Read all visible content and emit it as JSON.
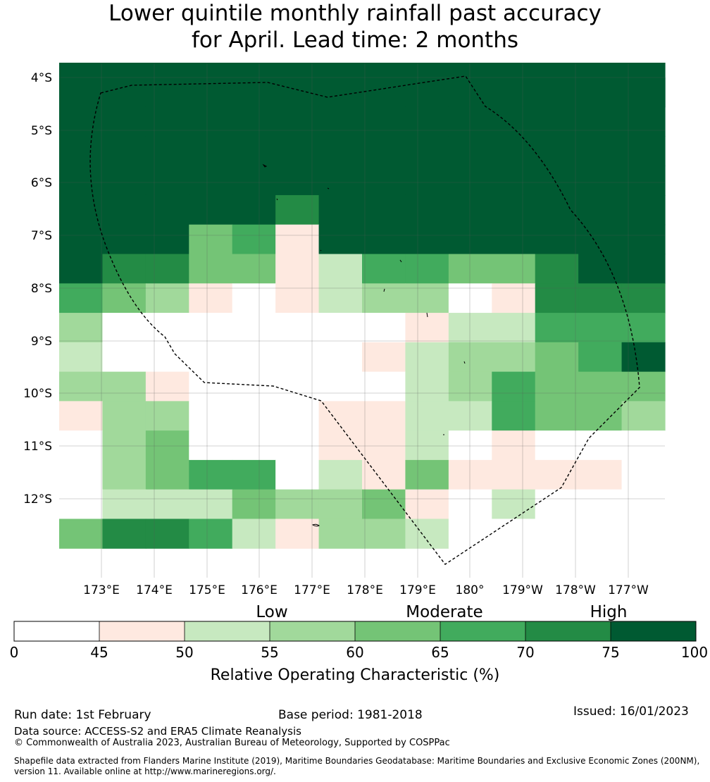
{
  "title": {
    "line1": "Lower quintile monthly rainfall past accuracy",
    "line2": "for April. Lead time: 2 months"
  },
  "map": {
    "lat_labels": [
      "4°S",
      "5°S",
      "6°S",
      "7°S",
      "8°S",
      "9°S",
      "10°S",
      "11°S",
      "12°S"
    ],
    "lon_labels": [
      "173°E",
      "174°E",
      "175°E",
      "176°E",
      "177°E",
      "178°E",
      "179°E",
      "180°",
      "179°W",
      "178°W",
      "177°W"
    ],
    "grid_legend_codes": "0=<45,1=45-50,2=50-55,3=55-60,4=60-65,5=65-70,6=70-75,7=>=75",
    "grid_rows": [
      "77777777777777",
      "77777777777777",
      "77777777777777",
      "77777777777777",
      "77777777777777",
      "77777677777777",
      "77745177777777",
      "76644125544677",
      "54310123301666",
      "30000000122555",
      "20000001233457",
      "33100000235444",
      "13300011225443",
      "03400011201000",
      "03455021411110",
      "02224334102000",
      "46652133200000"
    ]
  },
  "legend": {
    "category_labels": [
      "Low",
      "Moderate",
      "High"
    ],
    "colors": [
      "#ffffff",
      "#fee9e0",
      "#c7e9c0",
      "#a1d99b",
      "#74c476",
      "#41ab5d",
      "#238b45",
      "#005a32"
    ],
    "tick_labels": [
      "0",
      "45",
      "50",
      "55",
      "60",
      "65",
      "70",
      "75",
      "100"
    ],
    "axis_label": "Relative Operating Characteristic (%)"
  },
  "footer": {
    "run_date": "Run date: 1st February",
    "base_period": "Base period: 1981-2018",
    "issued": "Issued: 16/01/2023",
    "data_source": "Data source: ACCESS-S2 and ERA5 Climate Reanalysis",
    "copyright": "© Commonwealth of Australia 2023, Australian Bureau of Meteorology, Supported by COSPPac",
    "shapefile_line1": "Shapefile data extracted from Flanders Marine Institute (2019), Maritime Boundaries Geodatabase: Maritime Boundaries and Exclusive Economic Zones (200NM),",
    "shapefile_line2": "version 11. Available online at http://www.marineregions.org/."
  }
}
